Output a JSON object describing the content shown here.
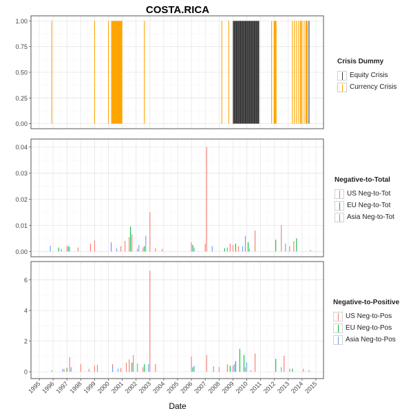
{
  "chart_data": {
    "title": "COSTA.RICA",
    "xlabel": "Date",
    "x_years": [
      "1995",
      "1996",
      "1997",
      "1998",
      "1999",
      "2000",
      "2001",
      "2002",
      "2003",
      "2004",
      "2005",
      "2006",
      "2007",
      "2008",
      "2009",
      "2010",
      "2011",
      "2012",
      "2013",
      "2014",
      "2015"
    ],
    "panels": [
      {
        "type": "bar",
        "ylim": [
          0,
          1
        ],
        "yticks": [
          "0.00",
          "0.25",
          "0.50",
          "0.75",
          "1.00"
        ],
        "legend": {
          "title": "Crisis Dummy",
          "series": [
            {
              "name": "Equity Crisis",
              "color": "#333333"
            },
            {
              "name": "Currency Crisis",
              "color": "#FFA500"
            }
          ]
        },
        "segments": [
          {
            "series": 1,
            "dates": [
              1995.9,
              1999.0,
              2000.0,
              2002.6,
              2008.2,
              2008.7,
              2011.8,
              2013.3,
              2013.45,
              2013.6,
              2013.75,
              2014.0,
              2014.15
            ]
          },
          {
            "series": 1,
            "ranges": [
              [
                2000.2,
                2001.0
              ],
              [
                2011.95,
                2012.15
              ],
              [
                2013.85,
                2013.95
              ],
              [
                2014.25,
                2014.4
              ]
            ]
          },
          {
            "series": 0,
            "ranges": [
              [
                2009.0,
                2010.9
              ]
            ]
          },
          {
            "series": 0,
            "dates": [
              2014.5
            ]
          }
        ]
      },
      {
        "type": "bar",
        "ylim": [
          0,
          0.041
        ],
        "yticks": [
          "0.00",
          "0.01",
          "0.02",
          "0.03",
          "0.04"
        ],
        "legend": {
          "title": "Negative-to-Total",
          "series": [
            {
              "name": "US Neg-to-Tot",
              "color": "#F8766D"
            },
            {
              "name": "EU Neg-to-Tot",
              "color": "#00BA38"
            },
            {
              "name": "Asia Neg-to-Tot",
              "color": "#619CFF"
            }
          ]
        },
        "bars": [
          [
            [
              1997.0,
              0.002
            ],
            [
              1997.8,
              0.0015
            ],
            [
              1998.7,
              0.003
            ],
            [
              1999.0,
              0.0042
            ],
            [
              2000.2,
              0.0035
            ],
            [
              2000.9,
              0.002
            ],
            [
              2001.2,
              0.004
            ],
            [
              2001.5,
              0.0055
            ],
            [
              2001.7,
              0.0065
            ],
            [
              2002.1,
              0.001
            ],
            [
              2002.5,
              0.0015
            ],
            [
              2003.0,
              0.015
            ],
            [
              2003.4,
              0.0012
            ],
            [
              2003.9,
              0.001
            ],
            [
              2006.0,
              0.0035
            ],
            [
              2007.0,
              0.003
            ],
            [
              2007.1,
              0.04
            ],
            [
              2008.8,
              0.003
            ],
            [
              2009.0,
              0.0025
            ],
            [
              2009.4,
              0.002
            ],
            [
              2009.9,
              0.0015
            ],
            [
              2010.2,
              0.001
            ],
            [
              2010.6,
              0.008
            ],
            [
              2012.5,
              0.01
            ],
            [
              2013.1,
              0.002
            ],
            [
              2013.4,
              0.004
            ]
          ],
          [
            [
              1996.4,
              0.0015
            ],
            [
              1997.1,
              0.002
            ],
            [
              2001.6,
              0.0095
            ],
            [
              2002.6,
              0.002
            ],
            [
              2006.1,
              0.0025
            ],
            [
              2008.4,
              0.0012
            ],
            [
              2009.2,
              0.003
            ],
            [
              2010.1,
              0.0035
            ],
            [
              2012.1,
              0.0045
            ],
            [
              2013.6,
              0.005
            ]
          ],
          [
            [
              1995.8,
              0.0022
            ],
            [
              1996.6,
              0.001
            ],
            [
              1997.2,
              0.0018
            ],
            [
              2000.2,
              0.003
            ],
            [
              2000.6,
              0.0012
            ],
            [
              2002.2,
              0.0025
            ],
            [
              2002.7,
              0.006
            ],
            [
              2006.2,
              0.0015
            ],
            [
              2007.5,
              0.002
            ],
            [
              2008.6,
              0.0015
            ],
            [
              2009.7,
              0.002
            ],
            [
              2009.9,
              0.006
            ],
            [
              2012.8,
              0.003
            ],
            [
              2014.6,
              0.0005
            ]
          ]
        ]
      },
      {
        "type": "bar",
        "ylim": [
          -0.1,
          6.85
        ],
        "yticks": [
          "0",
          "2",
          "4",
          "6"
        ],
        "legend": {
          "title": "Negative-to-Positive",
          "series": [
            {
              "name": "US Neg-to-Pos",
              "color": "#F8766D"
            },
            {
              "name": "EU Neg-to-Pos",
              "color": "#00BA38"
            },
            {
              "name": "Asia Neg-to-Pos",
              "color": "#619CFF"
            }
          ]
        },
        "bars": [
          [
            [
              1996.8,
              0.15
            ],
            [
              1997.2,
              0.95
            ],
            [
              1998.0,
              0.5
            ],
            [
              1998.6,
              0.2
            ],
            [
              1999.0,
              0.4
            ],
            [
              1999.2,
              0.45
            ],
            [
              2000.3,
              0.5
            ],
            [
              2000.9,
              0.25
            ],
            [
              2001.3,
              0.6
            ],
            [
              2001.5,
              0.8
            ],
            [
              2001.8,
              1.1
            ],
            [
              2002.5,
              0.3
            ],
            [
              2003.0,
              6.6
            ],
            [
              2003.4,
              0.5
            ],
            [
              2006.0,
              1.0
            ],
            [
              2007.1,
              1.1
            ],
            [
              2008.0,
              0.3
            ],
            [
              2008.6,
              0.5
            ],
            [
              2009.0,
              0.4
            ],
            [
              2009.9,
              0.3
            ],
            [
              2010.3,
              0.1
            ],
            [
              2010.6,
              1.2
            ],
            [
              2012.7,
              1.05
            ],
            [
              2013.1,
              0.2
            ],
            [
              2014.1,
              0.2
            ]
          ],
          [
            [
              1997.0,
              0.25
            ],
            [
              2001.7,
              0.6
            ],
            [
              2002.6,
              0.5
            ],
            [
              2006.1,
              0.3
            ],
            [
              2008.8,
              0.4
            ],
            [
              2009.2,
              0.7
            ],
            [
              2009.5,
              1.5
            ],
            [
              2009.8,
              1.1
            ],
            [
              2012.1,
              0.85
            ],
            [
              2013.3,
              0.2
            ]
          ],
          [
            [
              1995.9,
              0.1
            ],
            [
              1996.7,
              0.2
            ],
            [
              1997.3,
              0.3
            ],
            [
              2000.3,
              0.35
            ],
            [
              2000.7,
              0.2
            ],
            [
              2002.1,
              0.55
            ],
            [
              2002.9,
              0.5
            ],
            [
              2006.2,
              0.4
            ],
            [
              2007.6,
              0.35
            ],
            [
              2009.1,
              0.5
            ],
            [
              2010.0,
              0.6
            ],
            [
              2012.5,
              0.3
            ],
            [
              2014.5,
              0.1
            ]
          ]
        ]
      }
    ]
  }
}
